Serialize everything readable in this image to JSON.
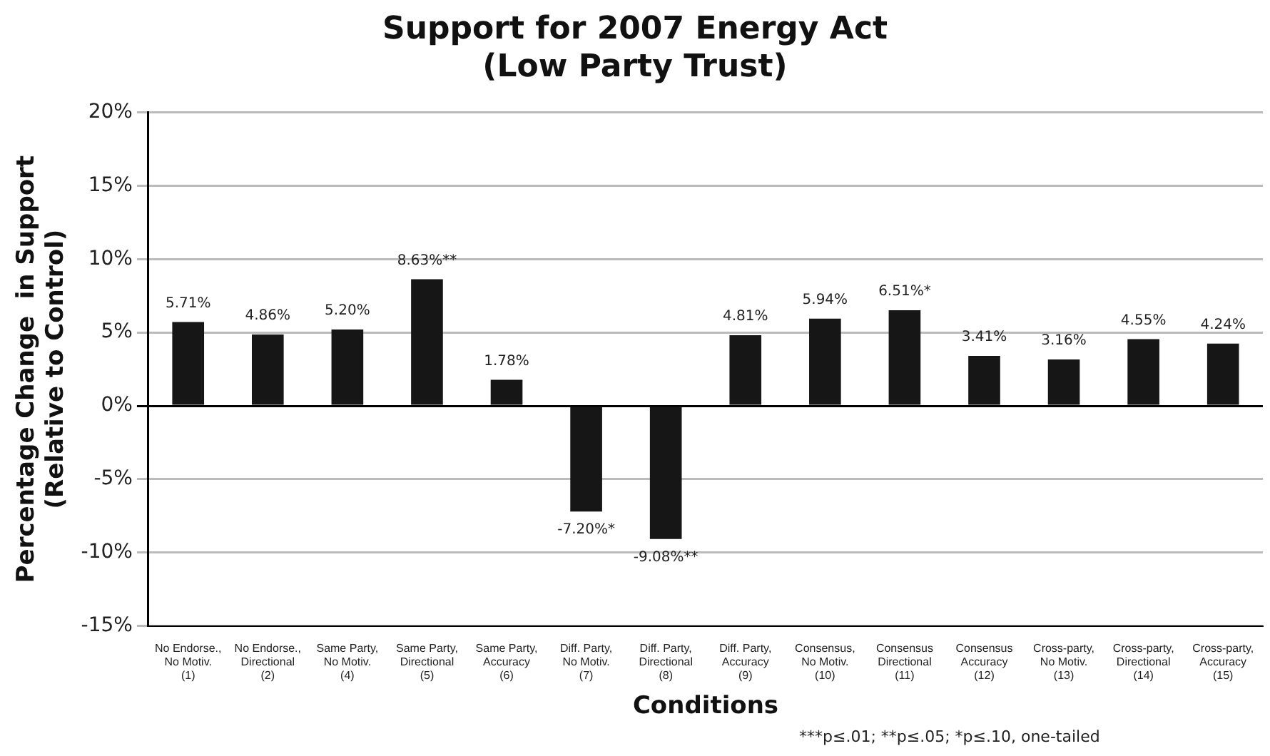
{
  "chart_data": {
    "type": "bar",
    "title": "Support for 2007 Energy Act\n(Low Party Trust)",
    "xlabel": "Conditions",
    "ylabel": "Percentage Change  in Support\n(Relative to Control)",
    "categories": [
      "No Endorse.,\nNo Motiv.\n(1)",
      "No Endorse.,\nDirectional\n(2)",
      "Same Party,\nNo Motiv.\n(4)",
      "Same Party,\nDirectional\n(5)",
      "Same Party,\nAccuracy\n(6)",
      "Diff. Party,\nNo Motiv.\n(7)",
      "Diff. Party,\nDirectional\n(8)",
      "Diff. Party,\nAccuracy\n(9)",
      "Consensus,\nNo Motiv.\n(10)",
      "Consensus\nDirectional\n(11)",
      "Consensus\nAccuracy\n(12)",
      "Cross-party,\nNo Motiv.\n(13)",
      "Cross-party,\nDirectional\n(14)",
      "Cross-party,\nAccuracy\n(15)"
    ],
    "values": [
      5.71,
      4.86,
      5.2,
      8.63,
      1.78,
      -7.2,
      -9.08,
      4.81,
      5.94,
      6.51,
      3.41,
      3.16,
      4.55,
      4.24
    ],
    "value_labels": [
      "5.71%",
      "4.86%",
      "5.20%",
      "8.63%**",
      "1.78%",
      "-7.20%*",
      "-9.08%**",
      "4.81%",
      "5.94%",
      "6.51%*",
      "3.41%",
      "3.16%",
      "4.55%",
      "4.24%"
    ],
    "color": "#161616",
    "ylim": [
      -15,
      20
    ],
    "yticks": [
      {
        "value": -15,
        "label": "-15%"
      },
      {
        "value": -10,
        "label": "-10%"
      },
      {
        "value": -5,
        "label": "-5%"
      },
      {
        "value": 0,
        "label": "0%"
      },
      {
        "value": 5,
        "label": "5%"
      },
      {
        "value": 10,
        "label": "10%"
      },
      {
        "value": 15,
        "label": "15%"
      },
      {
        "value": 20,
        "label": "20%"
      }
    ],
    "grid": "y",
    "legend": false,
    "annotations": [
      "***p≤.01; **p≤.05; *p≤.10, one-tailed"
    ]
  }
}
